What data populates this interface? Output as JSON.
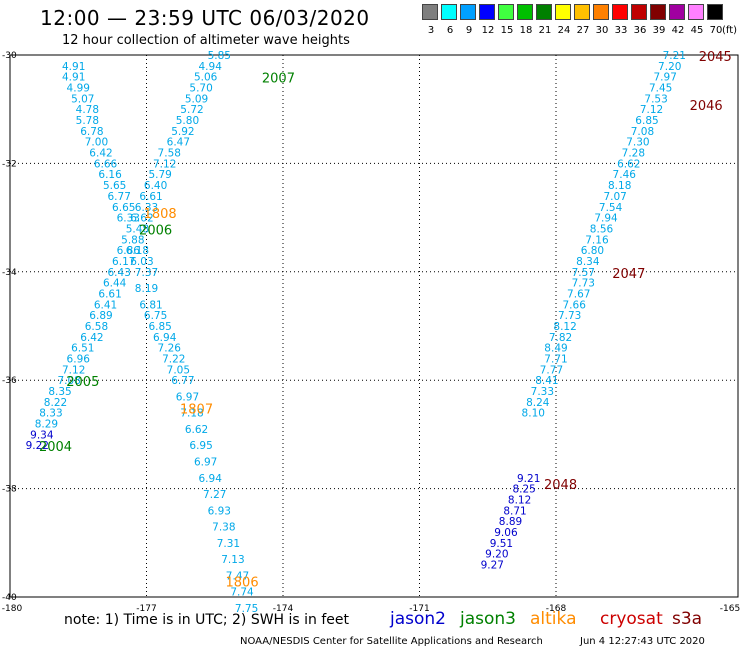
{
  "title": "12:00 — 23:59 UTC 06/03/2020",
  "subtitle": "12 hour collection of altimeter wave heights",
  "legend": {
    "unit": "(ft)",
    "bins": [
      {
        "label": "3",
        "color": "#7f7f7f"
      },
      {
        "label": "6",
        "color": "#00ffff"
      },
      {
        "label": "9",
        "color": "#00a0ff"
      },
      {
        "label": "12",
        "color": "#0000ff"
      },
      {
        "label": "15",
        "color": "#40ff40"
      },
      {
        "label": "18",
        "color": "#00c000"
      },
      {
        "label": "21",
        "color": "#008000"
      },
      {
        "label": "24",
        "color": "#ffff00"
      },
      {
        "label": "27",
        "color": "#ffc000"
      },
      {
        "label": "30",
        "color": "#ff8000"
      },
      {
        "label": "33",
        "color": "#ff0000"
      },
      {
        "label": "36",
        "color": "#c00000"
      },
      {
        "label": "39",
        "color": "#800000"
      },
      {
        "label": "42",
        "color": "#a000a0"
      },
      {
        "label": "45",
        "color": "#ff80ff"
      },
      {
        "label": "70",
        "color": "#000000"
      }
    ]
  },
  "note": "note:  1) Time is in UTC;  2) SWH is in feet",
  "satellites": [
    {
      "name": "jason2",
      "color": "#0000cc"
    },
    {
      "name": "jason3",
      "color": "#008000"
    },
    {
      "name": "altika",
      "color": "#ff8c00"
    },
    {
      "name": "cryosat",
      "color": "#cc0000"
    },
    {
      "name": "s3a",
      "color": "#800000"
    }
  ],
  "footer": {
    "source": "NOAA/NESDIS Center for Satellite Applications and Research",
    "timestamp": "Jun  4 12:27:43 UTC 2020"
  },
  "chart_data": {
    "type": "scatter",
    "xlim": [
      -180,
      -164
    ],
    "ylim": [
      -40,
      -30
    ],
    "x_ticks": [
      "-180",
      "-177",
      "-174",
      "-171",
      "-168",
      "-165"
    ],
    "y_ticks": [
      "-30",
      "-32",
      "-34",
      "-36",
      "-38",
      "-40"
    ],
    "grid": true,
    "tracks": [
      {
        "pass": "2007",
        "sat": "jason3",
        "color": "#00a8e8",
        "label_color": "#008000",
        "label_pos": [
          -174.1,
          -30.4
        ],
        "points": [
          [
            -175.4,
            -30.0,
            "5.85"
          ],
          [
            -175.6,
            -30.2,
            "4.94"
          ],
          [
            -175.7,
            -30.4,
            "5.06"
          ],
          [
            -175.8,
            -30.6,
            "5.70"
          ],
          [
            -175.9,
            -30.8,
            "5.09"
          ],
          [
            -176.0,
            -31.0,
            "5.72"
          ],
          [
            -176.1,
            -31.2,
            "5.80"
          ],
          [
            -176.2,
            -31.4,
            "5.92"
          ],
          [
            -176.3,
            -31.6,
            "6.47"
          ],
          [
            -176.5,
            -31.8,
            "7.58"
          ],
          [
            -176.6,
            -32.0,
            "7.12"
          ],
          [
            -176.7,
            -32.2,
            "5.79"
          ],
          [
            -176.8,
            -32.4,
            "6.40"
          ],
          [
            -176.9,
            -32.6,
            "6.61"
          ],
          [
            -177.0,
            -32.8,
            "6.33"
          ],
          [
            -177.1,
            -33.0,
            "6.62"
          ],
          [
            -177.2,
            -33.2,
            "5.48"
          ]
        ]
      },
      {
        "pass": "2006",
        "sat": "jason3",
        "color": "#00a8e8",
        "label_color": "#008000",
        "label_pos": [
          -176.8,
          -33.2
        ],
        "points": [
          [
            -177.3,
            -33.4,
            "5.88"
          ],
          [
            -177.4,
            -33.6,
            "6.86"
          ],
          [
            -177.5,
            -33.8,
            "6.17"
          ],
          [
            -177.6,
            -34.0,
            "6.43"
          ],
          [
            -177.7,
            -34.2,
            "6.44"
          ],
          [
            -177.8,
            -34.4,
            "6.61"
          ],
          [
            -177.9,
            -34.6,
            "6.41"
          ],
          [
            -178.0,
            -34.8,
            "6.89"
          ],
          [
            -178.1,
            -35.0,
            "6.58"
          ],
          [
            -178.2,
            -35.2,
            "6.42"
          ],
          [
            -178.4,
            -35.4,
            "6.51"
          ],
          [
            -178.5,
            -35.6,
            "6.96"
          ],
          [
            -178.6,
            -35.8,
            "7.12"
          ],
          [
            -178.7,
            -36.0,
            "7.08"
          ]
        ]
      },
      {
        "pass": "2005",
        "sat": "jason3",
        "color": "#00a8e8",
        "label_color": "#008000",
        "label_pos": [
          -178.4,
          -36.0
        ],
        "points": [
          [
            -178.9,
            -36.2,
            "8.35"
          ],
          [
            -179.0,
            -36.4,
            "8.22"
          ],
          [
            -179.1,
            -36.6,
            "8.33"
          ],
          [
            -179.2,
            -36.8,
            "8.29"
          ]
        ]
      },
      {
        "pass": "2004",
        "sat": "jason3",
        "color": "#0000cc",
        "label_color": "#008000",
        "label_pos": [
          -179.0,
          -37.2
        ],
        "points": [
          [
            -179.3,
            -37.0,
            "9.34"
          ],
          [
            -179.4,
            -37.2,
            "9.22"
          ]
        ]
      },
      {
        "pass": "1808",
        "sat": "altika",
        "color": "#00a8e8",
        "label_color": "#ff8c00",
        "label_pos": [
          -176.7,
          -32.9
        ],
        "points": [
          [
            -178.6,
            -30.2,
            "4.91"
          ],
          [
            -178.6,
            -30.4,
            "4.91"
          ],
          [
            -178.5,
            -30.6,
            "4.99"
          ],
          [
            -178.4,
            -30.8,
            "5.07"
          ],
          [
            -178.3,
            -31.0,
            "4.78"
          ],
          [
            -178.3,
            -31.2,
            "5.78"
          ],
          [
            -178.2,
            -31.4,
            "6.78"
          ],
          [
            -178.1,
            -31.6,
            "7.00"
          ],
          [
            -178.0,
            -31.8,
            "6.42"
          ],
          [
            -177.9,
            -32.0,
            "6.66"
          ],
          [
            -177.8,
            -32.2,
            "6.16"
          ],
          [
            -177.7,
            -32.4,
            "5.65"
          ],
          [
            -177.6,
            -32.6,
            "6.77"
          ],
          [
            -177.5,
            -32.8,
            "6.65"
          ],
          [
            -177.4,
            -33.0,
            "6.33"
          ],
          [
            -177.2,
            -33.6,
            "6.18"
          ],
          [
            -177.1,
            -33.8,
            "6.03"
          ],
          [
            -177.0,
            -34.0,
            "7.37"
          ],
          [
            -177.0,
            -34.3,
            "8.19"
          ]
        ]
      },
      {
        "pass": "1807",
        "sat": "altika",
        "color": "#00a8e8",
        "label_color": "#ff8c00",
        "label_pos": [
          -175.9,
          -36.5
        ],
        "points": [
          [
            -176.9,
            -34.6,
            "6.81"
          ],
          [
            -176.8,
            -34.8,
            "6.75"
          ],
          [
            -176.7,
            -35.0,
            "6.85"
          ],
          [
            -176.6,
            -35.2,
            "6.94"
          ],
          [
            -176.5,
            -35.4,
            "7.26"
          ],
          [
            -176.4,
            -35.6,
            "7.22"
          ],
          [
            -176.3,
            -35.8,
            "7.05"
          ],
          [
            -176.2,
            -36.0,
            "6.77"
          ],
          [
            -176.1,
            -36.3,
            "6.97"
          ],
          [
            -176.0,
            -36.6,
            "7.18"
          ],
          [
            -175.9,
            -36.9,
            "6.62"
          ],
          [
            -175.8,
            -37.2,
            "6.95"
          ],
          [
            -175.7,
            -37.5,
            "6.97"
          ],
          [
            -175.6,
            -37.8,
            "6.94"
          ]
        ]
      },
      {
        "pass": "1806",
        "sat": "altika",
        "color": "#00a8e8",
        "label_color": "#ff8c00",
        "label_pos": [
          -174.9,
          -39.7
        ],
        "points": [
          [
            -175.5,
            -38.1,
            "7.27"
          ],
          [
            -175.4,
            -38.4,
            "6.93"
          ],
          [
            -175.3,
            -38.7,
            "7.38"
          ],
          [
            -175.2,
            -39.0,
            "7.31"
          ],
          [
            -175.1,
            -39.3,
            "7.13"
          ],
          [
            -175.0,
            -39.6,
            "7.47"
          ],
          [
            -174.9,
            -39.9,
            "7.74"
          ],
          [
            -174.8,
            -40.2,
            "7.75"
          ]
        ]
      },
      {
        "pass": "2045",
        "sat": "s3a",
        "color": "#00a8e8",
        "label_color": "#800000",
        "label_pos": [
          -164.5,
          -30.0
        ],
        "points": [
          [
            -165.4,
            -30.0,
            "7.21"
          ],
          [
            -165.5,
            -30.2,
            "7.20"
          ],
          [
            -165.6,
            -30.4,
            "7.97"
          ],
          [
            -165.7,
            -30.6,
            "7.45"
          ]
        ]
      },
      {
        "pass": "2046",
        "sat": "s3a",
        "color": "#00a8e8",
        "label_color": "#800000",
        "label_pos": [
          -164.7,
          -30.9
        ],
        "points": [
          [
            -165.8,
            -30.8,
            "7.53"
          ],
          [
            -165.9,
            -31.0,
            "7.12"
          ],
          [
            -166.0,
            -31.2,
            "6.85"
          ],
          [
            -166.1,
            -31.4,
            "7.08"
          ],
          [
            -166.2,
            -31.6,
            "7.30"
          ],
          [
            -166.3,
            -31.8,
            "7.28"
          ],
          [
            -166.4,
            -32.0,
            "6.62"
          ],
          [
            -166.5,
            -32.2,
            "7.46"
          ],
          [
            -166.6,
            -32.4,
            "8.18"
          ],
          [
            -166.7,
            -32.6,
            "7.07"
          ],
          [
            -166.8,
            -32.8,
            "7.54"
          ],
          [
            -166.9,
            -33.0,
            "7.94"
          ],
          [
            -167.0,
            -33.2,
            "8.56"
          ],
          [
            -167.1,
            -33.4,
            "7.16"
          ],
          [
            -167.2,
            -33.6,
            "6.80"
          ]
        ]
      },
      {
        "pass": "2047",
        "sat": "s3a",
        "color": "#00a8e8",
        "label_color": "#800000",
        "label_pos": [
          -166.4,
          -34.0
        ],
        "points": [
          [
            -167.3,
            -33.8,
            "8.34"
          ],
          [
            -167.4,
            -34.0,
            "7.57"
          ],
          [
            -167.4,
            -34.2,
            "7.73"
          ],
          [
            -167.5,
            -34.4,
            "7.67"
          ],
          [
            -167.6,
            -34.6,
            "7.66"
          ],
          [
            -167.7,
            -34.8,
            "7.73"
          ],
          [
            -167.8,
            -35.0,
            "8.12"
          ],
          [
            -167.9,
            -35.2,
            "7.82"
          ],
          [
            -168.0,
            -35.4,
            "8.49"
          ],
          [
            -168.0,
            -35.6,
            "7.71"
          ],
          [
            -168.1,
            -35.8,
            "7.77"
          ],
          [
            -168.2,
            -36.0,
            "8.41"
          ],
          [
            -168.3,
            -36.2,
            "7.33"
          ],
          [
            -168.4,
            -36.4,
            "8.24"
          ],
          [
            -168.5,
            -36.6,
            "8.10"
          ]
        ]
      },
      {
        "pass": "2048",
        "sat": "s3a",
        "color": "#0000cc",
        "label_color": "#800000",
        "label_pos": [
          -167.9,
          -37.9
        ],
        "points": [
          [
            -168.6,
            -37.8,
            "9.21"
          ],
          [
            -168.7,
            -38.0,
            "8.25"
          ],
          [
            -168.8,
            -38.2,
            "8.12"
          ],
          [
            -168.9,
            -38.4,
            "8.71"
          ],
          [
            -169.0,
            -38.6,
            "8.89"
          ],
          [
            -169.1,
            -38.8,
            "9.06"
          ],
          [
            -169.2,
            -39.0,
            "9.51"
          ],
          [
            -169.3,
            -39.2,
            "9.20"
          ],
          [
            -169.4,
            -39.4,
            "9.27"
          ]
        ]
      }
    ]
  }
}
